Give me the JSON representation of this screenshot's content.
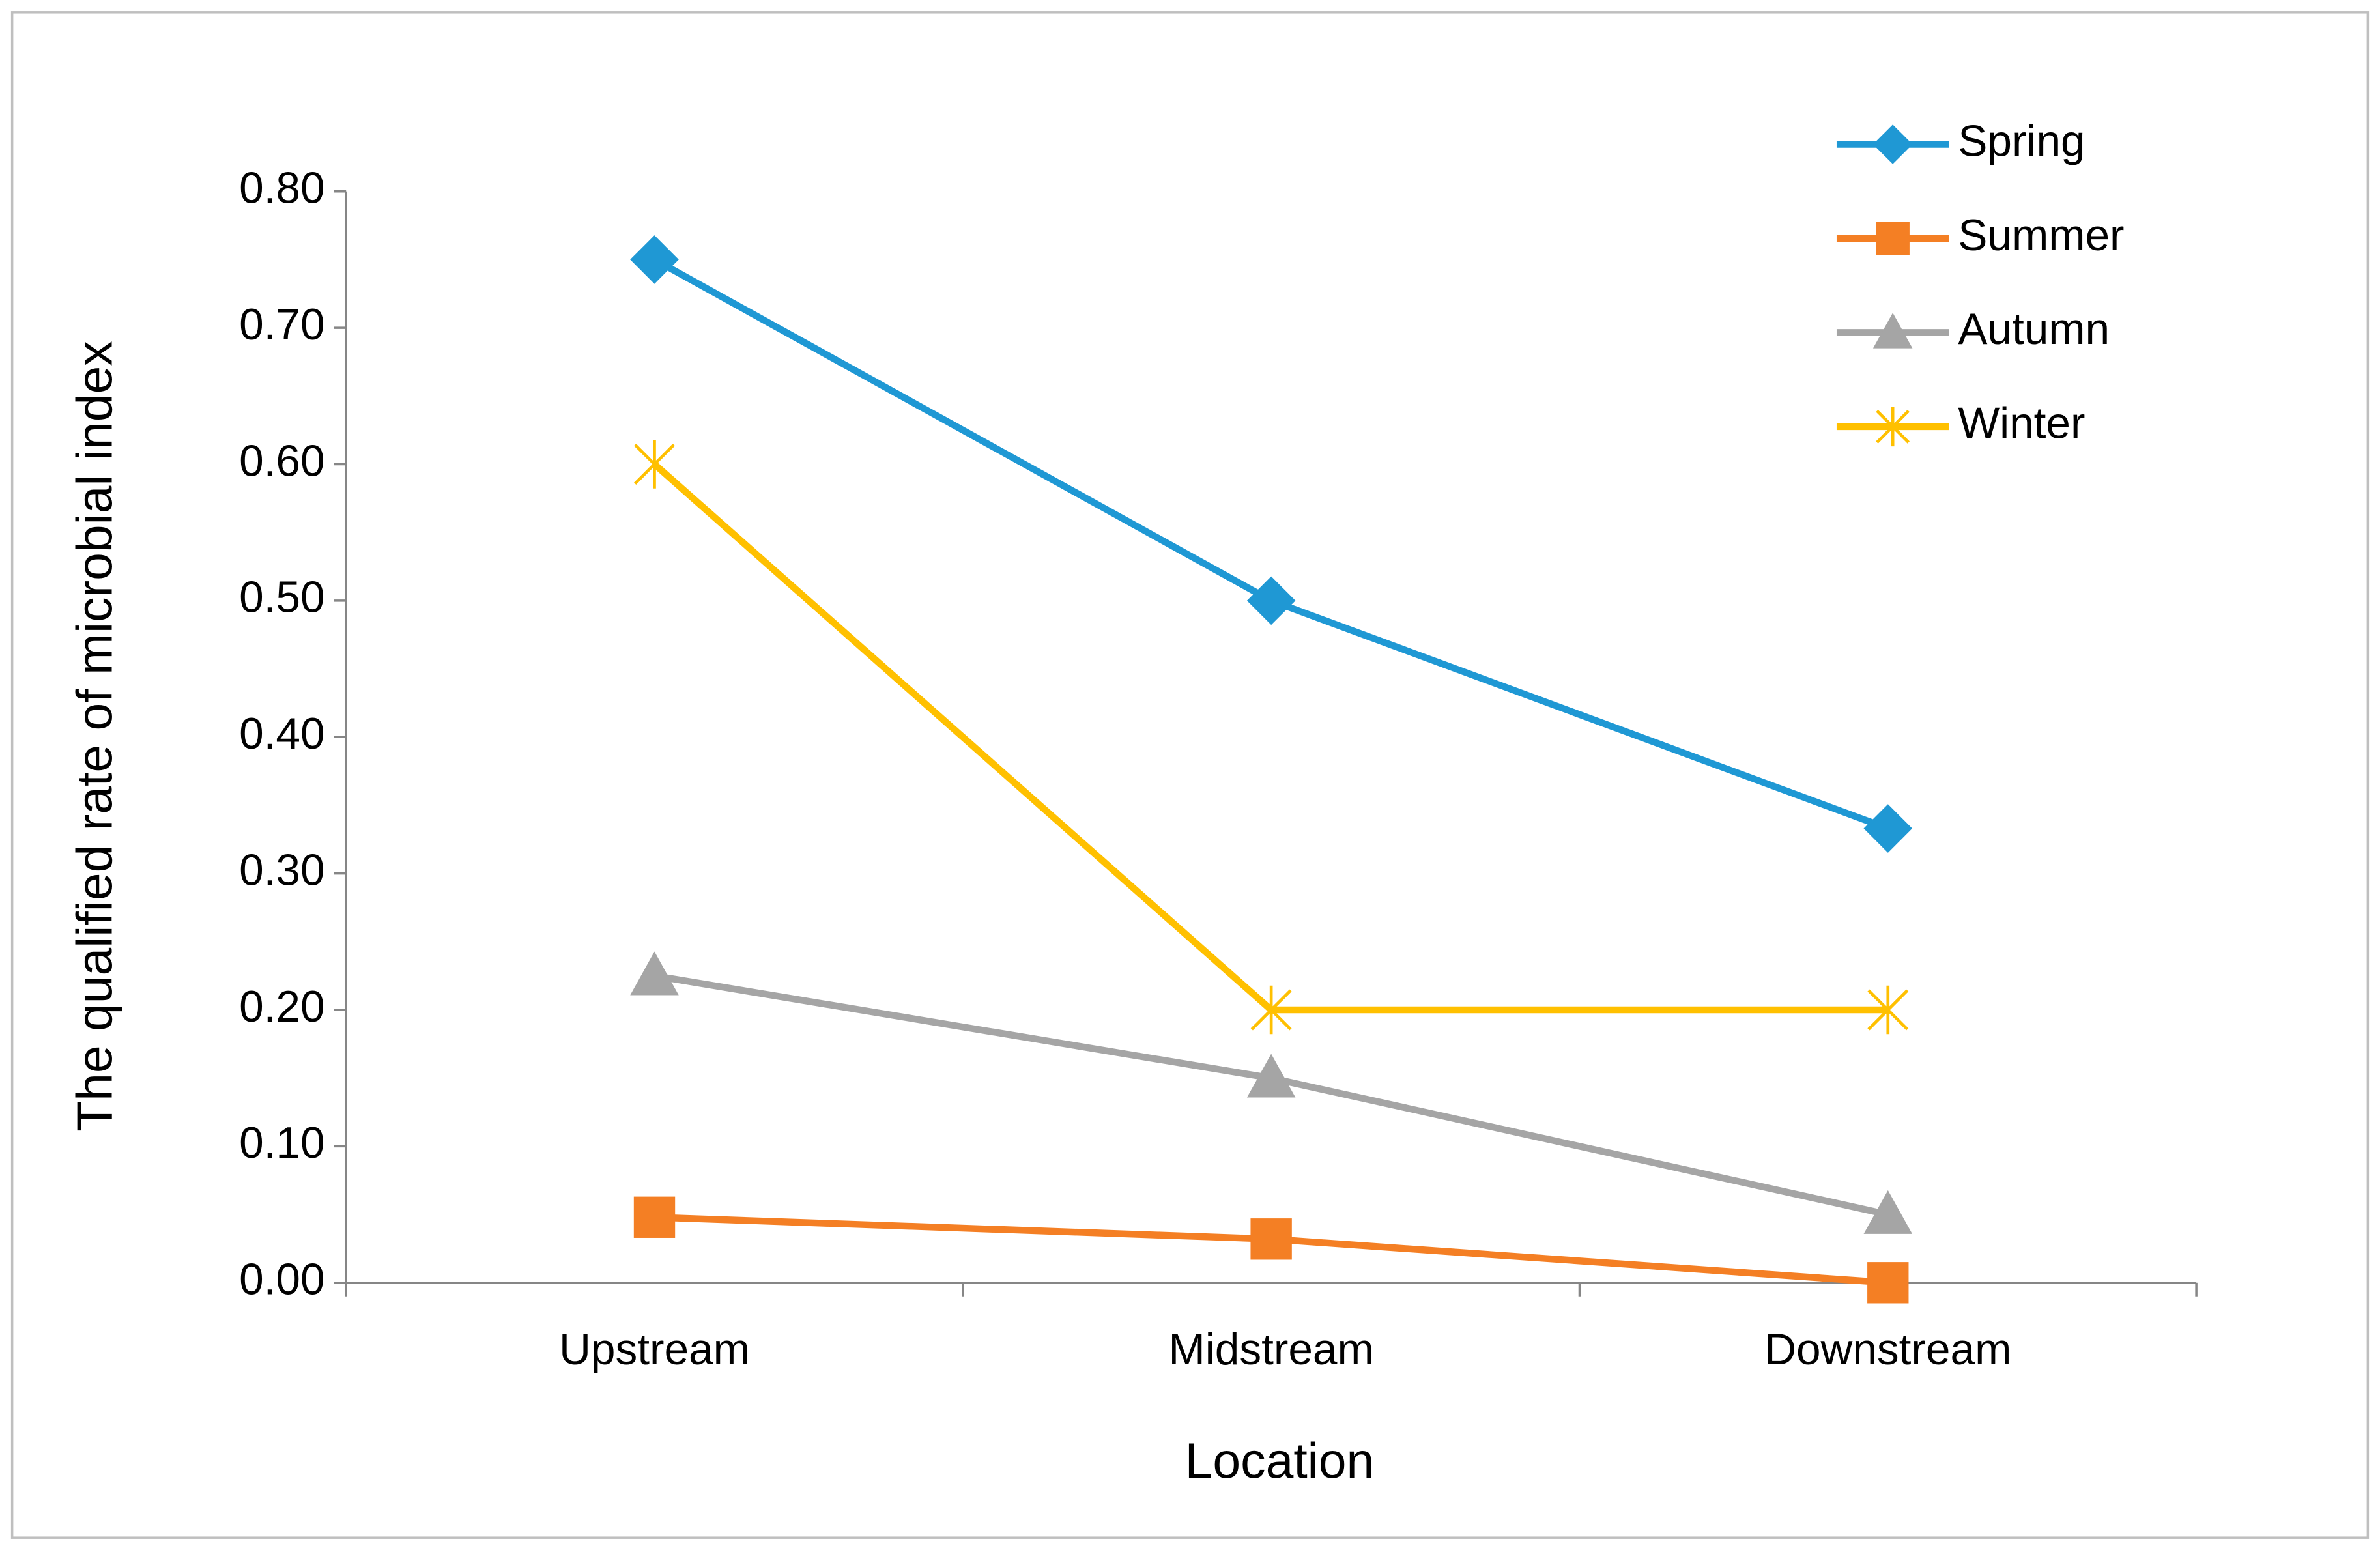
{
  "chart_data": {
    "type": "line",
    "x_label": "Location",
    "y_label": "The qualified rate of microbial index",
    "categories": [
      "Upstream",
      "Midstream",
      "Downstream"
    ],
    "series": [
      {
        "name": "Spring",
        "color": "#1f98d4",
        "marker": "diamond",
        "values": [
          0.75,
          0.5,
          0.333
        ]
      },
      {
        "name": "Summer",
        "color": "#f47f24",
        "marker": "square",
        "values": [
          0.048,
          0.032,
          0.0
        ]
      },
      {
        "name": "Autumn",
        "color": "#a5a5a5",
        "marker": "triangle",
        "values": [
          0.225,
          0.15,
          0.05
        ]
      },
      {
        "name": "Winter",
        "color": "#ffc000",
        "marker": "star",
        "values": [
          0.6,
          0.2,
          0.2
        ]
      }
    ],
    "ylim": [
      0,
      0.8
    ],
    "yticks": [
      {
        "value": 0,
        "label": "0.00"
      },
      {
        "value": 0.1,
        "label": "0.10"
      },
      {
        "value": 0.2,
        "label": "0.20"
      },
      {
        "value": 0.3,
        "label": "0.30"
      },
      {
        "value": 0.4,
        "label": "0.40"
      },
      {
        "value": 0.5,
        "label": "0.50"
      },
      {
        "value": 0.6,
        "label": "0.60"
      },
      {
        "value": 0.7,
        "label": "0.70"
      },
      {
        "value": 0.8,
        "label": "0.80"
      }
    ],
    "grid": false,
    "legend": "top-right"
  }
}
